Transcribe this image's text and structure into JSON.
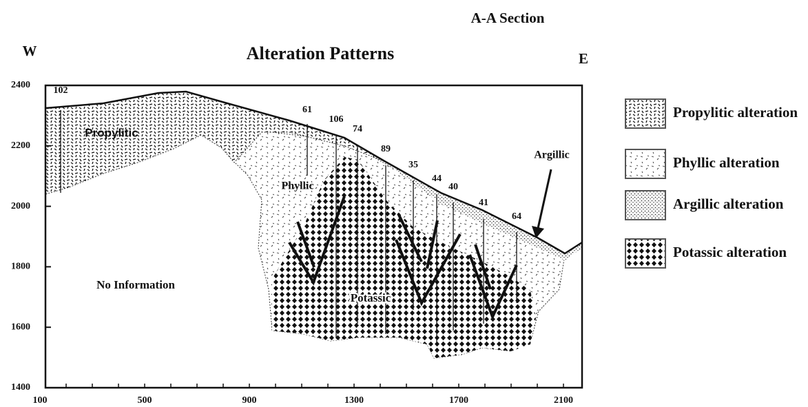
{
  "header": {
    "section": "A-A Section",
    "title": "Alteration Patterns",
    "west": "W",
    "east": "E"
  },
  "axes": {
    "y_ticks": [
      "2400",
      "2200",
      "2000",
      "1800",
      "1600",
      "1400"
    ],
    "x_ticks": [
      "100",
      "500",
      "900",
      "1300",
      "1700",
      "2100"
    ]
  },
  "zones": {
    "propylitic": "Propylitic",
    "phyllic": "Phyllic",
    "no_info": "No Information",
    "potassic": "Potassic",
    "argillic": "Argillic"
  },
  "holes": [
    "102",
    "61",
    "106",
    "74",
    "89",
    "35",
    "44",
    "40",
    "41",
    "64"
  ],
  "legend": [
    "Propylitic alteration",
    "Phyllic alteration",
    "Argillic alteration",
    "Potassic alteration"
  ]
}
